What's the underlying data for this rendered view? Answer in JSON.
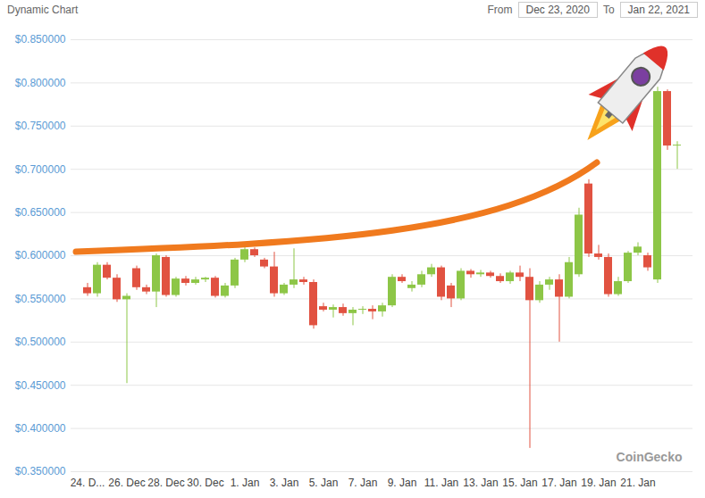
{
  "chart_data": {
    "type": "candlestick",
    "title": "Dynamic Chart",
    "range_selector": {
      "from_label": "From",
      "from": "Dec 23, 2020",
      "to_label": "To",
      "to": "Jan 22, 2021"
    },
    "annotations": [
      "CoinGecko"
    ],
    "categories": [
      "24. D...",
      null,
      null,
      null,
      "26. Dec",
      null,
      null,
      null,
      "28. Dec",
      null,
      null,
      null,
      "30. Dec",
      null,
      null,
      null,
      "1. Jan",
      null,
      null,
      null,
      "3. Jan",
      null,
      null,
      null,
      "5. Jan",
      null,
      null,
      null,
      "7. Jan",
      null,
      null,
      null,
      "9. Jan",
      null,
      null,
      null,
      "11. Jan",
      null,
      null,
      null,
      "13. Jan",
      null,
      null,
      null,
      "15. Jan",
      null,
      null,
      null,
      "17. Jan",
      null,
      null,
      null,
      "19. Jan",
      null,
      null,
      null,
      "21. Jan",
      null,
      null,
      null,
      null
    ],
    "open": [
      0.563,
      0.556,
      0.589,
      0.574,
      0.549,
      0.585,
      0.563,
      0.558,
      0.598,
      0.554,
      0.573,
      0.568,
      0.572,
      0.574,
      0.553,
      0.565,
      0.595,
      0.607,
      0.595,
      0.587,
      0.556,
      0.566,
      0.572,
      0.569,
      0.541,
      0.537,
      0.54,
      0.533,
      0.537,
      0.538,
      0.535,
      0.542,
      0.575,
      0.562,
      0.566,
      0.578,
      0.586,
      0.565,
      0.55,
      0.582,
      0.578,
      0.58,
      0.576,
      0.57,
      0.58,
      0.575,
      0.548,
      0.566,
      0.572,
      0.552,
      0.578,
      0.683,
      0.602,
      0.598,
      0.555,
      0.57,
      0.603,
      0.6,
      0.572,
      0.79,
      0.727
    ],
    "high": [
      0.568,
      0.592,
      0.592,
      0.578,
      0.556,
      0.588,
      0.566,
      0.602,
      0.6,
      0.575,
      0.576,
      0.575,
      0.575,
      0.576,
      0.568,
      0.597,
      0.61,
      0.609,
      0.597,
      0.604,
      0.568,
      0.608,
      0.575,
      0.572,
      0.545,
      0.543,
      0.544,
      0.54,
      0.541,
      0.542,
      0.545,
      0.578,
      0.578,
      0.57,
      0.582,
      0.59,
      0.588,
      0.568,
      0.585,
      0.584,
      0.583,
      0.582,
      0.579,
      0.582,
      0.588,
      0.585,
      0.57,
      0.575,
      0.578,
      0.598,
      0.655,
      0.688,
      0.612,
      0.602,
      0.575,
      0.605,
      0.615,
      0.603,
      0.795,
      0.792,
      0.732
    ],
    "low": [
      0.553,
      0.552,
      0.572,
      0.546,
      0.452,
      0.56,
      0.555,
      0.54,
      0.552,
      0.552,
      0.565,
      0.566,
      0.569,
      0.551,
      0.551,
      0.562,
      0.592,
      0.598,
      0.585,
      0.552,
      0.554,
      0.562,
      0.566,
      0.515,
      0.535,
      0.528,
      0.53,
      0.519,
      0.532,
      0.526,
      0.529,
      0.54,
      0.568,
      0.558,
      0.563,
      0.575,
      0.548,
      0.54,
      0.548,
      0.574,
      0.575,
      0.574,
      0.568,
      0.567,
      0.57,
      0.377,
      0.545,
      0.56,
      0.5,
      0.55,
      0.575,
      0.598,
      0.595,
      0.552,
      0.553,
      0.568,
      0.6,
      0.582,
      0.568,
      0.722,
      0.7
    ],
    "close": [
      0.556,
      0.589,
      0.574,
      0.549,
      0.553,
      0.563,
      0.558,
      0.6,
      0.554,
      0.573,
      0.568,
      0.572,
      0.574,
      0.553,
      0.565,
      0.595,
      0.607,
      0.6,
      0.587,
      0.556,
      0.566,
      0.572,
      0.569,
      0.519,
      0.537,
      0.54,
      0.533,
      0.537,
      0.538,
      0.535,
      0.542,
      0.575,
      0.57,
      0.566,
      0.578,
      0.586,
      0.552,
      0.55,
      0.582,
      0.578,
      0.58,
      0.576,
      0.57,
      0.58,
      0.575,
      0.548,
      0.566,
      0.572,
      0.552,
      0.592,
      0.647,
      0.602,
      0.598,
      0.555,
      0.57,
      0.603,
      0.61,
      0.586,
      0.79,
      0.727,
      0.728
    ],
    "colors": [
      "#e15241",
      "#8dc647",
      "#e15241",
      "#e15241",
      "#8dc647",
      "#e15241",
      "#e15241",
      "#8dc647",
      "#e15241",
      "#8dc647",
      "#e15241",
      "#8dc647",
      "#8dc647",
      "#e15241",
      "#8dc647",
      "#8dc647",
      "#8dc647",
      "#e15241",
      "#e15241",
      "#e15241",
      "#8dc647",
      "#8dc647",
      "#e15241",
      "#e15241",
      "#e15241",
      "#8dc647",
      "#e15241",
      "#8dc647",
      "#8dc647",
      "#e15241",
      "#8dc647",
      "#8dc647",
      "#e15241",
      "#8dc647",
      "#8dc647",
      "#8dc647",
      "#e15241",
      "#e15241",
      "#8dc647",
      "#e15241",
      "#8dc647",
      "#e15241",
      "#e15241",
      "#8dc647",
      "#e15241",
      "#e15241",
      "#8dc647",
      "#8dc647",
      "#e15241",
      "#8dc647",
      "#8dc647",
      "#e15241",
      "#e15241",
      "#e15241",
      "#8dc647",
      "#8dc647",
      "#8dc647",
      "#e15241",
      "#8dc647",
      "#e15241",
      "#8dc647"
    ],
    "ylim": [
      0.35,
      0.85
    ],
    "yticks": [
      {
        "value": 0.35,
        "label": "$0.350000"
      },
      {
        "value": 0.4,
        "label": "$0.400000"
      },
      {
        "value": 0.45,
        "label": "$0.450000"
      },
      {
        "value": 0.5,
        "label": "$0.500000"
      },
      {
        "value": 0.55,
        "label": "$0.550000"
      },
      {
        "value": 0.6,
        "label": "$0.600000"
      },
      {
        "value": 0.65,
        "label": "$0.650000"
      },
      {
        "value": 0.7,
        "label": "$0.700000"
      },
      {
        "value": 0.75,
        "label": "$0.750000"
      },
      {
        "value": 0.8,
        "label": "$0.800000"
      },
      {
        "value": 0.85,
        "label": "$0.850000"
      }
    ],
    "grid": true
  }
}
